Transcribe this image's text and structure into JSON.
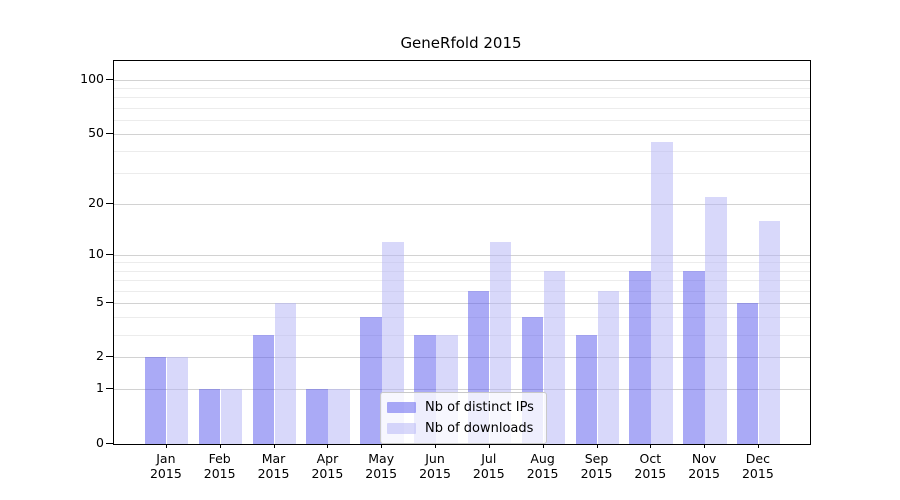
{
  "chart_data": {
    "type": "bar",
    "title": "GeneRfold 2015",
    "categories": [
      "Jan",
      "Feb",
      "Mar",
      "Apr",
      "May",
      "Jun",
      "Jul",
      "Aug",
      "Sep",
      "Oct",
      "Nov",
      "Dec"
    ],
    "category_year_label": "2015",
    "series": [
      {
        "name": "Nb of distinct IPs",
        "color": "rgba(85,85,238,0.5)",
        "color_over_white_hex": "#aaaaf7",
        "values": [
          2,
          1,
          3,
          1,
          4,
          3,
          6,
          4,
          3,
          8,
          8,
          5
        ]
      },
      {
        "name": "Nb of downloads",
        "color": "rgba(178,178,245,0.5)",
        "color_over_white_hex": "#d8d8fa",
        "values": [
          2,
          1,
          5,
          1,
          12,
          3,
          12,
          8,
          6,
          45,
          22,
          16
        ]
      }
    ],
    "xlabel": "",
    "ylabel": "",
    "yscale": "symlog (position proportional to ln(1+value))",
    "ylim": [
      0,
      127
    ],
    "yticks": [
      0,
      1,
      2,
      5,
      10,
      20,
      50,
      100
    ],
    "minor_gridlines": [
      3,
      4,
      6,
      7,
      8,
      9,
      30,
      40,
      60,
      70,
      80,
      90
    ],
    "grid": "on",
    "legend_position": "bottom-center-inside",
    "colors": {
      "major_grid": "#d2d2d2",
      "minor_grid": "#ececec",
      "axis": "#000000",
      "background": "#ffffff"
    }
  }
}
